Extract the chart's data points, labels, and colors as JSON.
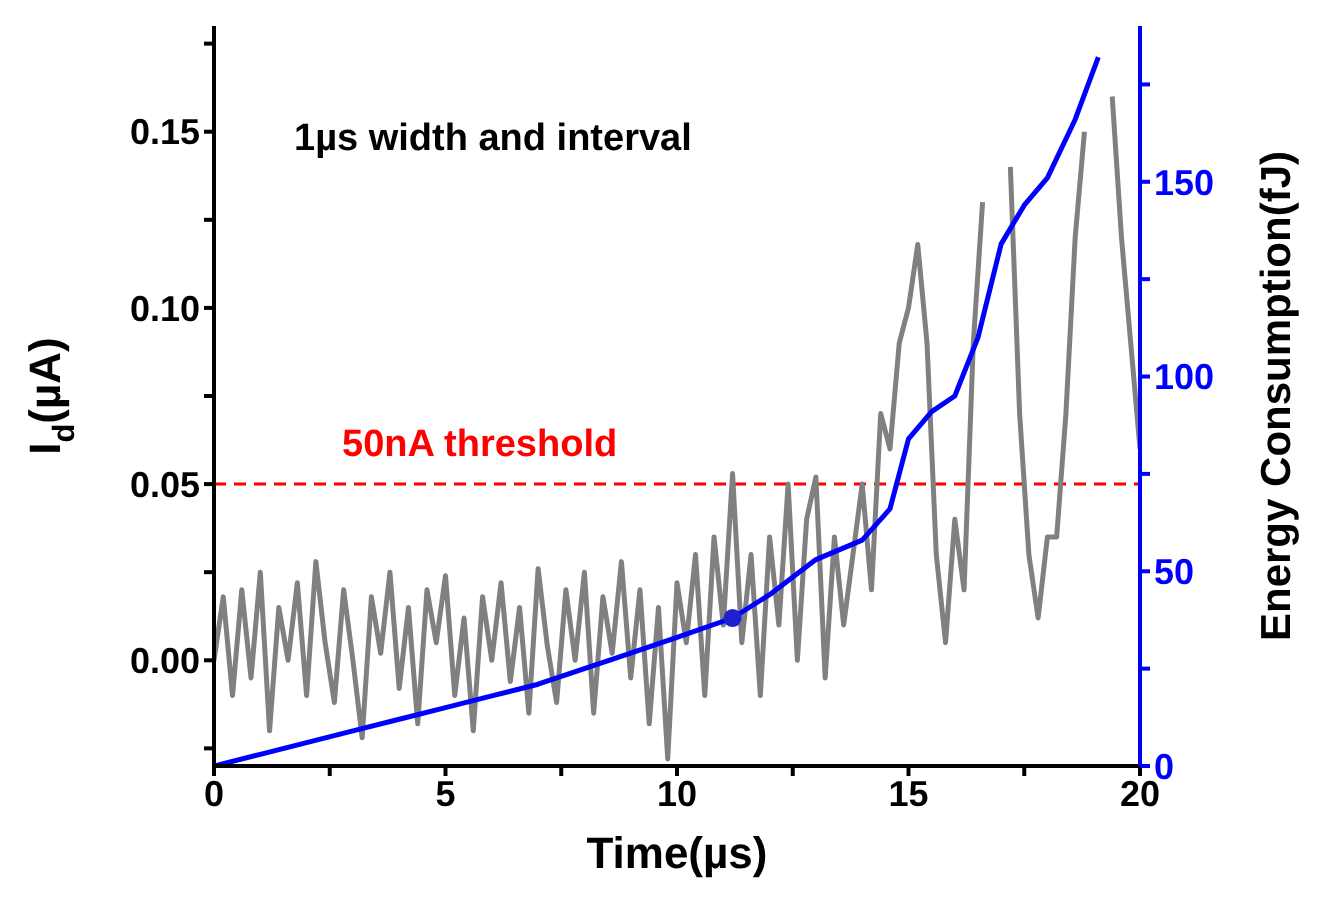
{
  "chart_data": {
    "type": "line",
    "xlabel": "Time(µs)",
    "ylabel": "I$_{d}$(µA)",
    "y2label": "Energy Consumption(fJ)",
    "annotations": [
      "1µs width and interval"
    ],
    "xlim": [
      0,
      20
    ],
    "xticks": [
      0,
      {
        "value": 2.5,
        "label": null
      },
      5,
      {
        "value": 7.5,
        "label": null
      },
      10,
      {
        "value": 12.5,
        "label": null
      },
      15,
      {
        "value": 17.5,
        "label": null
      },
      20
    ],
    "ylim": [
      -0.03,
      0.18
    ],
    "yticks": [
      {
        "value": -0.025,
        "label": null
      },
      {
        "value": 0,
        "label": "0.00"
      },
      {
        "value": 0.025,
        "label": null
      },
      0.05,
      {
        "value": 0.075,
        "label": null
      },
      {
        "value": 0.1,
        "label": "0.10"
      },
      {
        "value": 0.125,
        "label": null
      },
      0.15,
      {
        "value": 0.175,
        "label": null
      }
    ],
    "y2lim": [
      0,
      190
    ],
    "y2ticks": [
      0,
      {
        "value": 25,
        "label": null
      },
      50,
      {
        "value": 75,
        "label": null
      },
      100,
      {
        "value": 125,
        "label": null
      },
      150,
      {
        "value": 175,
        "label": null
      }
    ],
    "marker": "none",
    "line_style": "solid",
    "ref_lines": [
      {
        "axis": "y",
        "value": 0.05,
        "label": "50nA threshold",
        "color": "#ff0000",
        "line_style": "dashed"
      }
    ],
    "series": [
      {
        "color": "#808080",
        "x": [
          0,
          0.2,
          0.4,
          0.6,
          0.8,
          1,
          1.2,
          1.4,
          1.6,
          1.8,
          2,
          2.2,
          2.4,
          2.6,
          2.8,
          3,
          3.2,
          3.4,
          3.6,
          3.8,
          4,
          4.2,
          4.4,
          4.6,
          4.8,
          5,
          5.2,
          5.4,
          5.6,
          5.8,
          6,
          6.2,
          6.4,
          6.6,
          6.8,
          7,
          7.2,
          7.4,
          7.6,
          7.8,
          8,
          8.2,
          8.4,
          8.6,
          8.8,
          9,
          9.2,
          9.4,
          9.6,
          9.8,
          10,
          10.2,
          10.4,
          10.6,
          10.8,
          11,
          11.2,
          11.4,
          11.6,
          11.8,
          12,
          12.2,
          12.4,
          12.6,
          12.8,
          13,
          13.2,
          13.4,
          13.6,
          13.8,
          14,
          14.2,
          14.4,
          14.6,
          14.8,
          15,
          15.2,
          15.4,
          15.6,
          15.8,
          16,
          16.2,
          16.4,
          16.6,
          16.8,
          17,
          17.2,
          17.4,
          17.6,
          17.8,
          18,
          18.2,
          18.4,
          18.6,
          18.8,
          19,
          19.2,
          19.4,
          19.6,
          19.8,
          20
        ],
        "values": [
          0,
          0.018,
          -0.01,
          0.02,
          -0.005,
          0.025,
          -0.02,
          0.015,
          0,
          0.022,
          -0.01,
          0.028,
          0.005,
          -0.012,
          0.02,
          0,
          -0.022,
          0.018,
          0.002,
          0.025,
          -0.008,
          0.015,
          -0.018,
          0.02,
          0.005,
          0.024,
          -0.01,
          0.012,
          -0.02,
          0.018,
          0,
          0.022,
          -0.006,
          0.015,
          -0.015,
          0.026,
          0.004,
          -0.012,
          0.02,
          0,
          0.025,
          -0.015,
          0.018,
          0.002,
          0.028,
          -0.005,
          0.02,
          -0.018,
          0.015,
          -0.028,
          0.022,
          0.005,
          0.03,
          -0.01,
          0.035,
          0.01,
          0.053,
          0.005,
          0.03,
          -0.01,
          0.035,
          0.01,
          0.05,
          0,
          0.04,
          0.052,
          -0.005,
          0.035,
          0.01,
          0.03,
          0.05,
          0.02,
          0.07,
          0.06,
          0.09,
          0.1,
          0.118,
          0.09,
          0.03,
          0.005,
          0.04,
          0.02,
          0.09,
          0.13,
          null,
          null,
          0.14,
          0.07,
          0.03,
          0.012,
          0.035,
          0.035,
          0.07,
          0.12,
          0.15,
          null,
          null,
          0.16,
          0.12,
          0.09,
          0.06
        ]
      },
      {
        "color": "#0000ff",
        "axis": "y2",
        "x": [
          0,
          1,
          2,
          3,
          4,
          5,
          6,
          7,
          8,
          9,
          10,
          11.2,
          12,
          13,
          14,
          14.6,
          15,
          15.5,
          16,
          16.5,
          17,
          17.5,
          18,
          18.6,
          19.1
        ],
        "values": [
          0,
          3,
          6,
          9,
          12,
          15,
          18,
          21,
          25,
          29,
          33,
          38,
          44,
          53,
          58,
          66,
          84,
          91,
          95,
          110,
          134,
          144,
          151,
          166,
          182
        ]
      },
      {
        "type": "scatter",
        "color": "#2020d0",
        "axis": "y2",
        "marker": "circle",
        "x": [
          11.2
        ],
        "values": [
          38
        ]
      }
    ]
  }
}
